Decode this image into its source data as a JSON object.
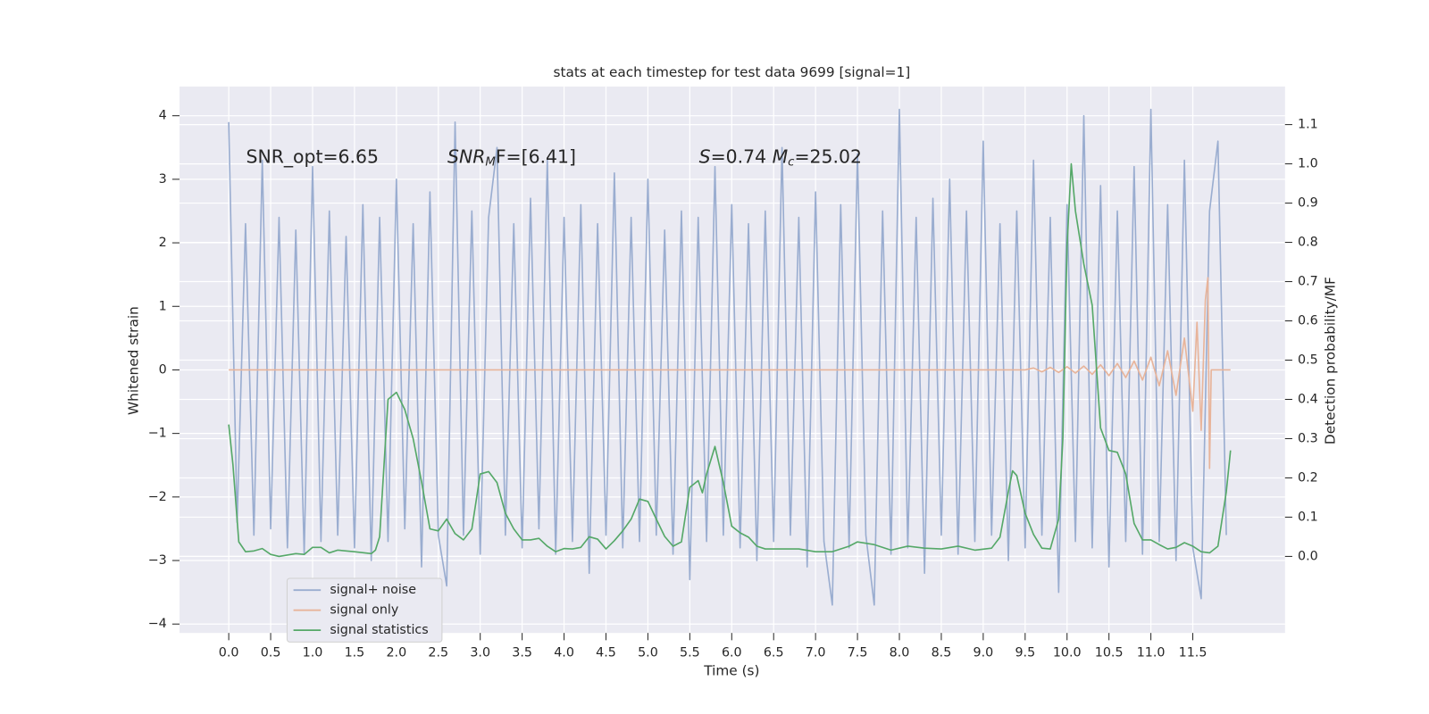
{
  "chart_data": {
    "type": "line",
    "title": "stats at each timestep for test data 9699 [signal=1]",
    "xlabel": "Time (s)",
    "ylabel": "Whitened strain",
    "y2label": "Detection probability/MF",
    "annotations": [
      [
        "SNR_opt=6.65"
      ],
      [
        "SNR",
        "M",
        "F=[6.41]"
      ],
      [
        "S",
        "=0.74   ",
        "M",
        "c",
        "=25.02"
      ]
    ],
    "xlim": [
      -0.587,
      12.6
    ],
    "ylim": [
      -4.14,
      4.46
    ],
    "y2lim": [
      -0.195,
      1.197
    ],
    "xticks": [
      {
        "value": 0,
        "label": "0.0"
      },
      0.5,
      {
        "value": 1,
        "label": "1.0"
      },
      1.5,
      {
        "value": 2,
        "label": "2.0"
      },
      2.5,
      {
        "value": 3,
        "label": "3.0"
      },
      3.5,
      {
        "value": 4,
        "label": "4.0"
      },
      4.5,
      {
        "value": 5,
        "label": "5.0"
      },
      5.5,
      {
        "value": 6,
        "label": "6.0"
      },
      6.5,
      {
        "value": 7,
        "label": "7.0"
      },
      7.5,
      {
        "value": 8,
        "label": "8.0"
      },
      8.5,
      {
        "value": 9,
        "label": "9.0"
      },
      9.5,
      {
        "value": 10,
        "label": "10.0"
      },
      10.5,
      {
        "value": 11,
        "label": "11.0"
      },
      11.5
    ],
    "yticks": [
      {
        "value": -4,
        "label": "−4"
      },
      {
        "value": -3,
        "label": "−3"
      },
      {
        "value": -2,
        "label": "−2"
      },
      {
        "value": -1,
        "label": "−1"
      },
      0,
      1,
      2,
      3,
      4
    ],
    "y2ticks": [
      {
        "value": 0,
        "label": "0.0"
      },
      0.1,
      0.2,
      0.3,
      0.4,
      0.5,
      0.6,
      0.7,
      0.8,
      0.9,
      {
        "value": 1,
        "label": "1.0"
      },
      1.1
    ],
    "grid": true,
    "legend": "lower left",
    "series": [
      {
        "name": "signal+ noise",
        "color": "#9aadd0",
        "axis": "y",
        "x": [
          0,
          0.1,
          0.2,
          0.3,
          0.4,
          0.5,
          0.6,
          0.7,
          0.8,
          0.9,
          1,
          1.1,
          1.2,
          1.3,
          1.4,
          1.5,
          1.6,
          1.7,
          1.8,
          1.9,
          2,
          2.1,
          2.2,
          2.3,
          2.4,
          2.5,
          2.6,
          2.7,
          2.8,
          2.9,
          3,
          3.1,
          3.2,
          3.3,
          3.4,
          3.5,
          3.6,
          3.7,
          3.8,
          3.9,
          4,
          4.1,
          4.2,
          4.3,
          4.4,
          4.5,
          4.6,
          4.7,
          4.8,
          4.9,
          5,
          5.1,
          5.2,
          5.3,
          5.4,
          5.5,
          5.6,
          5.7,
          5.8,
          5.9,
          6,
          6.1,
          6.2,
          6.3,
          6.4,
          6.5,
          6.6,
          6.7,
          6.8,
          6.9,
          7,
          7.1,
          7.2,
          7.3,
          7.4,
          7.5,
          7.6,
          7.7,
          7.8,
          7.9,
          8,
          8.1,
          8.2,
          8.3,
          8.4,
          8.5,
          8.6,
          8.7,
          8.8,
          8.9,
          9,
          9.1,
          9.2,
          9.3,
          9.4,
          9.5,
          9.6,
          9.7,
          9.8,
          9.9,
          10,
          10.1,
          10.2,
          10.3,
          10.4,
          10.5,
          10.6,
          10.7,
          10.8,
          10.9,
          11,
          11.1,
          11.2,
          11.3,
          11.4,
          11.5,
          11.6,
          11.7,
          11.8,
          11.9
        ],
        "values": [
          3.9,
          -2.4,
          2.3,
          -2.6,
          3.3,
          -2.5,
          2.4,
          -2.8,
          2.2,
          -2.9,
          3.2,
          -2.7,
          2.5,
          -2.6,
          2.1,
          -2.8,
          2.6,
          -3.0,
          2.4,
          -2.7,
          3.0,
          -2.5,
          2.3,
          -3.1,
          2.8,
          -2.6,
          -3.4,
          3.9,
          -2.6,
          2.5,
          -2.9,
          2.4,
          3.5,
          -2.6,
          2.3,
          -2.8,
          2.7,
          -2.5,
          3.3,
          -2.9,
          2.4,
          -2.7,
          2.6,
          -3.2,
          2.3,
          -2.6,
          3.1,
          -2.8,
          2.4,
          -2.7,
          3.0,
          -2.6,
          2.2,
          -2.9,
          2.5,
          -3.3,
          2.4,
          -2.7,
          3.2,
          -2.6,
          2.6,
          -2.8,
          2.3,
          -3.0,
          2.5,
          -2.7,
          3.5,
          -2.6,
          2.4,
          -3.1,
          2.8,
          -2.7,
          -3.7,
          2.6,
          -2.8,
          3.4,
          -2.6,
          -3.7,
          2.5,
          -2.9,
          4.1,
          -2.8,
          2.4,
          -3.2,
          2.7,
          -2.6,
          3.0,
          -2.9,
          2.5,
          -2.7,
          3.6,
          -2.6,
          2.3,
          -3.0,
          2.5,
          -2.8,
          3.3,
          -2.6,
          2.4,
          -3.5,
          2.6,
          -2.7,
          4.0,
          -2.8,
          2.9,
          -3.1,
          2.5,
          -2.7,
          3.2,
          -2.9,
          4.1,
          -2.7,
          2.6,
          -3.0,
          3.3,
          -2.8,
          -3.6,
          2.5,
          3.6,
          -2.6
        ]
      },
      {
        "name": "signal only",
        "color": "#e8b49a",
        "axis": "y",
        "x": [
          0,
          9.5,
          9.6,
          9.7,
          9.8,
          9.9,
          10,
          10.1,
          10.2,
          10.3,
          10.4,
          10.5,
          10.6,
          10.7,
          10.8,
          10.9,
          11,
          11.1,
          11.2,
          11.3,
          11.4,
          11.5,
          11.55,
          11.6,
          11.65,
          11.68,
          11.7,
          11.72,
          11.95
        ],
        "values": [
          0,
          0,
          0.03,
          -0.03,
          0.04,
          -0.04,
          0.05,
          -0.05,
          0.06,
          -0.07,
          0.08,
          -0.09,
          0.1,
          -0.12,
          0.14,
          -0.16,
          0.2,
          -0.25,
          0.3,
          -0.4,
          0.5,
          -0.65,
          0.75,
          -0.95,
          1.1,
          1.45,
          -1.55,
          0,
          0
        ]
      },
      {
        "name": "signal statistics",
        "color": "#55a868",
        "axis": "y2",
        "x": [
          0,
          0.05,
          0.12,
          0.2,
          0.3,
          0.4,
          0.5,
          0.6,
          0.8,
          0.9,
          1,
          1.1,
          1.2,
          1.3,
          1.5,
          1.7,
          1.75,
          1.8,
          1.9,
          2,
          2.1,
          2.2,
          2.3,
          2.4,
          2.5,
          2.6,
          2.7,
          2.8,
          2.9,
          3,
          3.1,
          3.2,
          3.3,
          3.4,
          3.5,
          3.6,
          3.7,
          3.8,
          3.9,
          4,
          4.1,
          4.2,
          4.3,
          4.4,
          4.5,
          4.6,
          4.7,
          4.8,
          4.9,
          5,
          5.1,
          5.2,
          5.3,
          5.4,
          5.5,
          5.6,
          5.65,
          5.7,
          5.8,
          5.9,
          6,
          6.1,
          6.2,
          6.3,
          6.4,
          6.6,
          6.8,
          7,
          7.2,
          7.4,
          7.5,
          7.7,
          7.9,
          8.1,
          8.3,
          8.5,
          8.7,
          8.9,
          9.1,
          9.2,
          9.3,
          9.35,
          9.4,
          9.5,
          9.6,
          9.7,
          9.8,
          9.9,
          9.95,
          10,
          10.05,
          10.1,
          10.2,
          10.3,
          10.4,
          10.5,
          10.6,
          10.7,
          10.8,
          10.9,
          11,
          11.1,
          11.2,
          11.3,
          11.4,
          11.5,
          11.6,
          11.7,
          11.8,
          11.9,
          11.95
        ],
        "values": [
          0.336,
          0.234,
          0.037,
          0.012,
          0.014,
          0.02,
          0.005,
          0,
          0.007,
          0.005,
          0.023,
          0.023,
          0.009,
          0.016,
          0.012,
          0.007,
          0.016,
          0.05,
          0.4,
          0.418,
          0.374,
          0.3,
          0.19,
          0.07,
          0.065,
          0.095,
          0.058,
          0.042,
          0.07,
          0.21,
          0.216,
          0.188,
          0.11,
          0.07,
          0.042,
          0.042,
          0.046,
          0.026,
          0.012,
          0.02,
          0.019,
          0.023,
          0.05,
          0.044,
          0.019,
          0.04,
          0.065,
          0.095,
          0.146,
          0.14,
          0.095,
          0.051,
          0.026,
          0.037,
          0.176,
          0.193,
          0.162,
          0.21,
          0.28,
          0.188,
          0.077,
          0.06,
          0.049,
          0.026,
          0.019,
          0.019,
          0.019,
          0.012,
          0.012,
          0.026,
          0.037,
          0.03,
          0.016,
          0.026,
          0.021,
          0.019,
          0.026,
          0.016,
          0.021,
          0.049,
          0.165,
          0.218,
          0.206,
          0.11,
          0.056,
          0.021,
          0.019,
          0.095,
          0.3,
          0.79,
          1.0,
          0.88,
          0.745,
          0.64,
          0.327,
          0.27,
          0.265,
          0.21,
          0.084,
          0.042,
          0.042,
          0.03,
          0.019,
          0.023,
          0.035,
          0.026,
          0.012,
          0.009,
          0.026,
          0.165,
          0.27
        ]
      }
    ]
  }
}
